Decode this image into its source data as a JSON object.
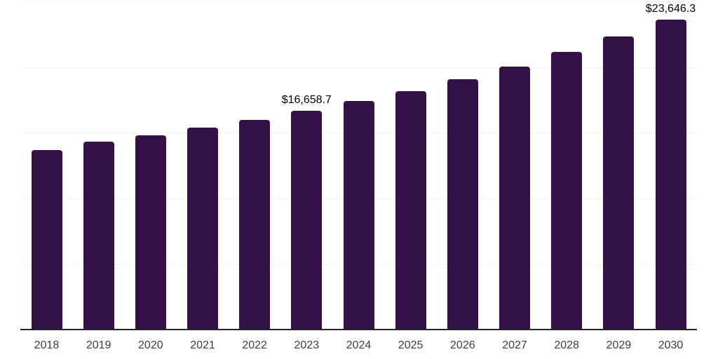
{
  "chart_data": {
    "type": "bar",
    "title": "",
    "xlabel": "",
    "ylabel": "",
    "categories": [
      "2018",
      "2019",
      "2020",
      "2021",
      "2022",
      "2023",
      "2024",
      "2025",
      "2026",
      "2027",
      "2028",
      "2029",
      "2030"
    ],
    "values": [
      13710,
      14340,
      14830,
      15400,
      16000,
      16658.7,
      17440,
      18190,
      19080,
      20080,
      21180,
      22350,
      23646.3
    ],
    "data_labels": [
      {
        "category": "2023",
        "text": "$16,658.7"
      },
      {
        "category": "2030",
        "text": "$23,646.3"
      }
    ],
    "ylim": [
      0,
      25000
    ],
    "gridline_values": [
      5000,
      10000,
      15000,
      20000,
      25000
    ],
    "grid": "horizontal",
    "legend": "none",
    "y_tick_labels_visible": false,
    "bar_color": "#341147",
    "gridline_color": "#f2f2f2",
    "axis_color": "#262626",
    "tick_label_color": "#3d3d3d",
    "data_label_color": "#000000"
  }
}
